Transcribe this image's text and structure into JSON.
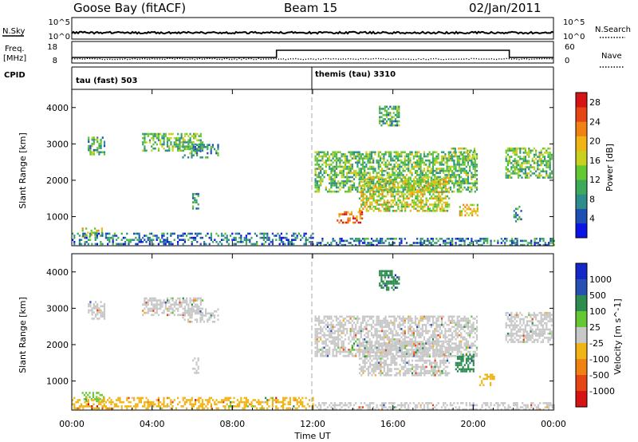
{
  "header": {
    "station": "Goose Bay (fitACF)",
    "beam": "Beam 15",
    "date": "02/Jan/2011"
  },
  "top_panels": {
    "nsky_label": "N.Sky",
    "nsky_ticks": [
      "10^5",
      "10^0"
    ],
    "nsearch_label": "N.Search",
    "nsearch_ticks": [
      "10^5",
      "10^0"
    ],
    "freq_label_1": "Freq.",
    "freq_label_2": "[MHz]",
    "freq_ticks": [
      "18",
      "8"
    ],
    "nave_label": "Nave",
    "nave_ticks": [
      "60",
      "0"
    ],
    "cpid_label": "CPID",
    "cpid_segments": [
      {
        "label": "tau (fast) 503",
        "start_hour": 0
      },
      {
        "label": "themis (tau) 3310",
        "start_hour": 12
      }
    ]
  },
  "chart_data": [
    {
      "type": "heatmap",
      "title": "Power",
      "xlabel": "Time UT",
      "ylabel": "Slant Range [km]",
      "xlim": [
        0,
        24
      ],
      "ylim": [
        200,
        4500
      ],
      "x_ticks": [
        "00:00",
        "04:00",
        "08:00",
        "12:00",
        "16:00",
        "20:00",
        "00:00"
      ],
      "y_ticks": [
        1000,
        2000,
        3000,
        4000
      ],
      "colorbar_label": "Power [dB]",
      "colorbar_ticks": [
        "28",
        "24",
        "20",
        "16",
        "12",
        "8",
        "4"
      ],
      "colorbar_range": [
        0,
        30
      ],
      "colors": [
        "#0a14e6",
        "#1e50b4",
        "#2d8c8c",
        "#3caa5a",
        "#64c832",
        "#c8d21e",
        "#f0b414",
        "#f08214",
        "#e64614",
        "#d71414"
      ],
      "regions": [
        {
          "x": [
            0.5,
            1.5
          ],
          "y": [
            450,
            700
          ],
          "level": 0.55
        },
        {
          "x": [
            0.8,
            1.6
          ],
          "y": [
            2700,
            3200
          ],
          "level": 0.35
        },
        {
          "x": [
            3.5,
            6.5
          ],
          "y": [
            2800,
            3300
          ],
          "level": 0.4
        },
        {
          "x": [
            5.5,
            7.3
          ],
          "y": [
            2650,
            3000
          ],
          "level": 0.3
        },
        {
          "x": [
            6.0,
            6.3
          ],
          "y": [
            1250,
            1650
          ],
          "level": 0.25
        },
        {
          "x": [
            0.0,
            12.0
          ],
          "y": [
            220,
            560
          ],
          "level": 0.2
        },
        {
          "x": [
            12.1,
            20.2
          ],
          "y": [
            1700,
            2800
          ],
          "level": 0.4
        },
        {
          "x": [
            14.3,
            18.8
          ],
          "y": [
            1150,
            2100
          ],
          "level": 0.55
        },
        {
          "x": [
            13.2,
            14.5
          ],
          "y": [
            850,
            1150
          ],
          "level": 0.85
        },
        {
          "x": [
            15.3,
            16.3
          ],
          "y": [
            3500,
            4050
          ],
          "level": 0.35
        },
        {
          "x": [
            18.8,
            20.1
          ],
          "y": [
            2600,
            2900
          ],
          "level": 0.5
        },
        {
          "x": [
            19.3,
            20.2
          ],
          "y": [
            1050,
            1350
          ],
          "level": 0.6
        },
        {
          "x": [
            21.6,
            23.9
          ],
          "y": [
            2100,
            2900
          ],
          "level": 0.4
        },
        {
          "x": [
            22.0,
            22.4
          ],
          "y": [
            850,
            1300
          ],
          "level": 0.3
        },
        {
          "x": [
            12.1,
            24.0
          ],
          "y": [
            220,
            420
          ],
          "level": 0.2
        }
      ]
    },
    {
      "type": "heatmap",
      "title": "Velocity",
      "xlabel": "Time UT",
      "ylabel": "Slant Range [km]",
      "xlim": [
        0,
        24
      ],
      "ylim": [
        200,
        4500
      ],
      "x_ticks": [
        "00:00",
        "04:00",
        "08:00",
        "12:00",
        "16:00",
        "20:00",
        "00:00"
      ],
      "y_ticks": [
        1000,
        2000,
        3000,
        4000
      ],
      "colorbar_label": "Velocity [m s^-1]",
      "colorbar_ticks": [
        "1000",
        "500",
        "100",
        "25",
        "-25",
        "-100",
        "-500",
        "-1000"
      ],
      "colors": [
        "#1428c8",
        "#2850b4",
        "#2d8c50",
        "#64c832",
        "#c8c8c8",
        "#f0b414",
        "#f08214",
        "#e64614",
        "#d71414"
      ],
      "regions": [
        {
          "x": [
            0.5,
            1.6
          ],
          "y": [
            450,
            700
          ],
          "level": 3
        },
        {
          "x": [
            0.8,
            1.6
          ],
          "y": [
            2700,
            3200
          ],
          "level": 4
        },
        {
          "x": [
            3.5,
            6.5
          ],
          "y": [
            2800,
            3300
          ],
          "level": 4
        },
        {
          "x": [
            5.5,
            7.3
          ],
          "y": [
            2650,
            3000
          ],
          "level": 4
        },
        {
          "x": [
            6.0,
            6.3
          ],
          "y": [
            1250,
            1650
          ],
          "level": 4
        },
        {
          "x": [
            0.0,
            12.0
          ],
          "y": [
            220,
            560
          ],
          "level": 5
        },
        {
          "x": [
            12.1,
            20.2
          ],
          "y": [
            1700,
            2800
          ],
          "level": 4
        },
        {
          "x": [
            14.3,
            18.8
          ],
          "y": [
            1150,
            2100
          ],
          "level": 4
        },
        {
          "x": [
            15.3,
            16.3
          ],
          "y": [
            3500,
            4050
          ],
          "level": 2
        },
        {
          "x": [
            19.1,
            20.0
          ],
          "y": [
            1250,
            1750
          ],
          "level": 2
        },
        {
          "x": [
            20.3,
            21.0
          ],
          "y": [
            900,
            1200
          ],
          "level": 5
        },
        {
          "x": [
            21.6,
            23.9
          ],
          "y": [
            2100,
            2900
          ],
          "level": 4
        },
        {
          "x": [
            12.1,
            24.0
          ],
          "y": [
            220,
            420
          ],
          "level": 4
        }
      ]
    }
  ]
}
